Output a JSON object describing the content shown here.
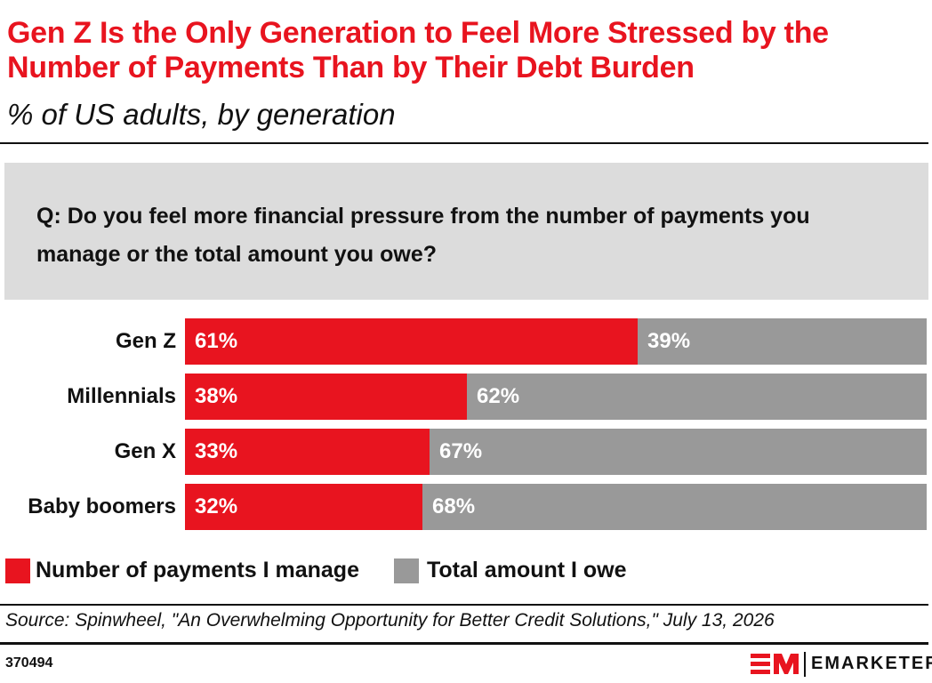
{
  "header": {
    "title": "Gen Z Is the Only Generation to Feel More Stressed by the Number of Payments Than by Their Debt Burden",
    "subtitle": "% of US adults, by generation"
  },
  "question": "Q: Do you feel more financial pressure from the number of payments you manage or the total amount you owe?",
  "chart_data": {
    "type": "bar",
    "orientation": "horizontal",
    "stacked": true,
    "categories": [
      "Gen Z",
      "Millennials",
      "Gen X",
      "Baby boomers"
    ],
    "series": [
      {
        "name": "Number of payments I manage",
        "values": [
          61,
          38,
          33,
          32
        ],
        "labels": [
          "61%",
          "38%",
          "33%",
          "32%"
        ],
        "color": "#e8141f"
      },
      {
        "name": "Total amount I owe",
        "values": [
          39,
          62,
          67,
          68
        ],
        "labels": [
          "39%",
          "62%",
          "67%",
          "68%"
        ],
        "color": "#999999"
      }
    ],
    "xlim": [
      0,
      100
    ],
    "legend_position": "bottom-left",
    "grid": false
  },
  "footer": {
    "source": "Source: Spinwheel, \"An Overwhelming Opportunity for Better Credit Solutions,\" July 13, 2026",
    "chart_id": "370494",
    "brand": "EMARKETER",
    "brand_color": "#e8141f"
  }
}
